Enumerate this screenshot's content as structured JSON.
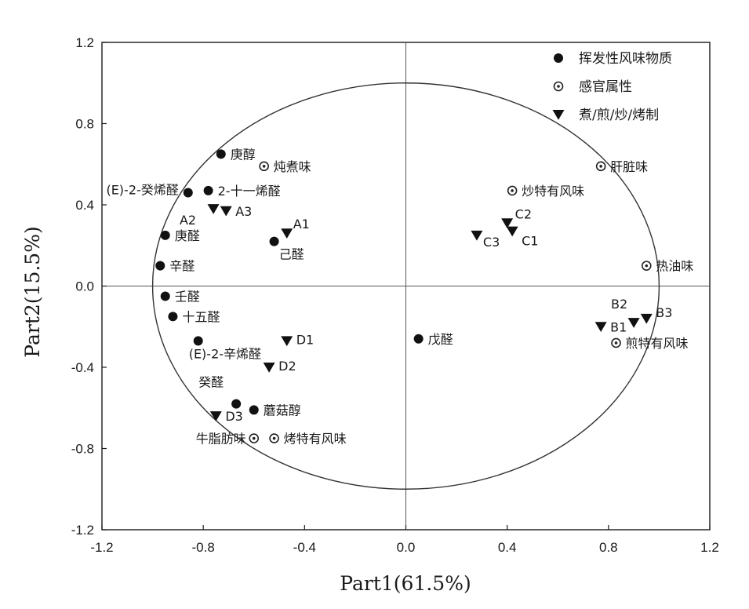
{
  "chart_data": {
    "type": "scatter",
    "xlabel": "Part1(61.5%)",
    "ylabel": "Part2(15.5%)",
    "xlim": [
      -1.2,
      1.2
    ],
    "ylim": [
      -1.2,
      1.2
    ],
    "xticks": [
      -1.2,
      -0.8,
      -0.4,
      0.0,
      0.4,
      0.8,
      1.2
    ],
    "yticks": [
      -1.2,
      -0.8,
      -0.4,
      0.0,
      0.4,
      0.8,
      1.2
    ],
    "x_tick_labels": [
      "-1.2",
      "-0.8",
      "-0.4",
      "0.0",
      "0.4",
      "0.8",
      "1.2"
    ],
    "y_tick_labels": [
      "-1.2",
      "-0.8",
      "-0.4",
      "0.0",
      "0.4",
      "0.8",
      "1.2"
    ],
    "reference_circle_radius": 1.0,
    "grid": false,
    "legend": {
      "position": "top-right",
      "entries": [
        {
          "marker": "filled-circle",
          "label": "挥发性风味物质"
        },
        {
          "marker": "ring",
          "label": "感官属性"
        },
        {
          "marker": "triangle-down",
          "label": "煮/煎/炒/烤制"
        }
      ]
    },
    "series": [
      {
        "marker": "filled-circle",
        "points": [
          {
            "label": "庚醇",
            "x": -0.73,
            "y": 0.65
          },
          {
            "label": "(E)-2-癸烯醛",
            "x": -0.86,
            "y": 0.46
          },
          {
            "label": "2-十一烯醛",
            "x": -0.78,
            "y": 0.47
          },
          {
            "label": "庚醛",
            "x": -0.95,
            "y": 0.25
          },
          {
            "label": "己醛",
            "x": -0.52,
            "y": 0.22
          },
          {
            "label": "辛醛",
            "x": -0.97,
            "y": 0.1
          },
          {
            "label": "壬醛",
            "x": -0.95,
            "y": -0.05
          },
          {
            "label": "十五醛",
            "x": -0.92,
            "y": -0.15
          },
          {
            "label": "(E)-2-辛烯醛",
            "x": -0.82,
            "y": -0.27
          },
          {
            "label": "戊醛",
            "x": 0.05,
            "y": -0.26
          },
          {
            "label": "癸醛",
            "x": -0.67,
            "y": -0.58
          },
          {
            "label": "蘑菇醇",
            "x": -0.6,
            "y": -0.61
          }
        ]
      },
      {
        "marker": "ring",
        "points": [
          {
            "label": "炖煮味",
            "x": -0.56,
            "y": 0.59
          },
          {
            "label": "肝脏味",
            "x": 0.77,
            "y": 0.59
          },
          {
            "label": "炒特有风味",
            "x": 0.42,
            "y": 0.47
          },
          {
            "label": "热油味",
            "x": 0.95,
            "y": 0.1
          },
          {
            "label": "煎特有风味",
            "x": 0.83,
            "y": -0.28
          },
          {
            "label": "牛脂肪味",
            "x": -0.6,
            "y": -0.75
          },
          {
            "label": "烤特有风味",
            "x": -0.52,
            "y": -0.75
          }
        ]
      },
      {
        "marker": "triangle-down",
        "points": [
          {
            "label": "A1",
            "x": -0.47,
            "y": 0.26
          },
          {
            "label": "A2",
            "x": -0.76,
            "y": 0.38
          },
          {
            "label": "A3",
            "x": -0.71,
            "y": 0.37
          },
          {
            "label": "C1",
            "x": 0.42,
            "y": 0.27
          },
          {
            "label": "C2",
            "x": 0.4,
            "y": 0.31
          },
          {
            "label": "C3",
            "x": 0.28,
            "y": 0.25
          },
          {
            "label": "B1",
            "x": 0.77,
            "y": -0.2
          },
          {
            "label": "B2",
            "x": 0.9,
            "y": -0.18
          },
          {
            "label": "B3",
            "x": 0.95,
            "y": -0.16
          },
          {
            "label": "D1",
            "x": -0.47,
            "y": -0.27
          },
          {
            "label": "D2",
            "x": -0.54,
            "y": -0.4
          },
          {
            "label": "D3",
            "x": -0.75,
            "y": -0.64
          }
        ]
      }
    ]
  }
}
